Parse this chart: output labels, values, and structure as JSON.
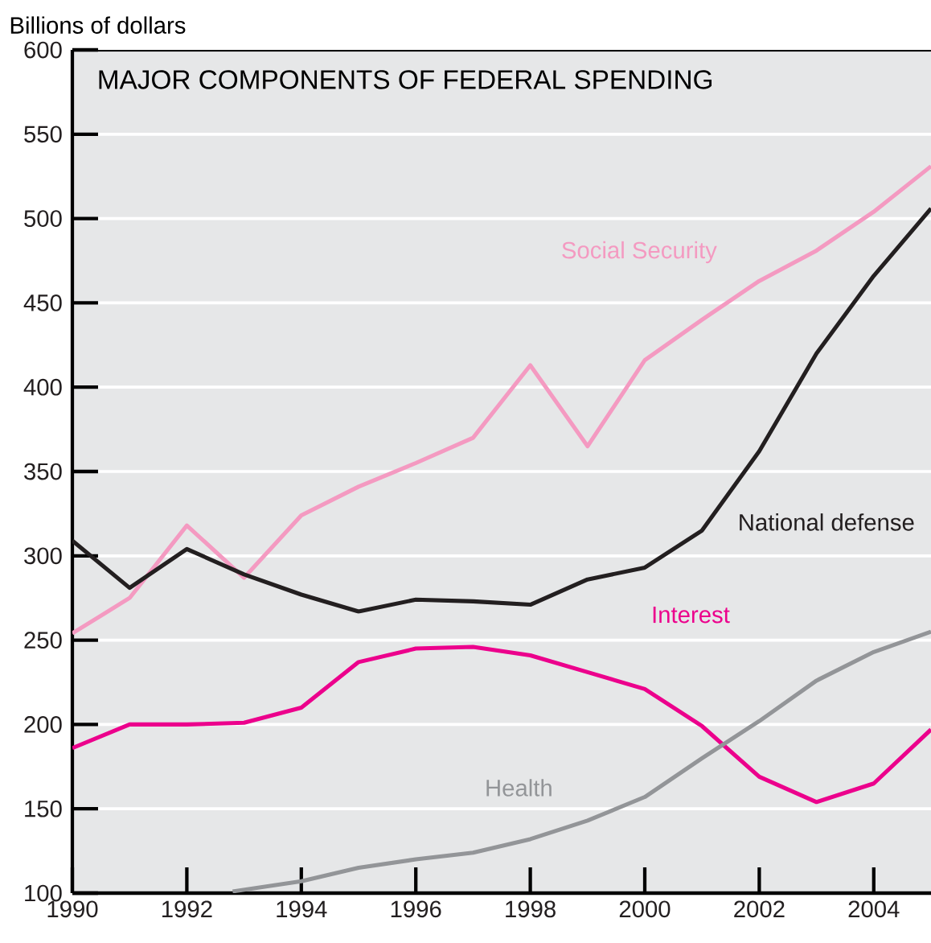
{
  "chart_data": {
    "type": "line",
    "title": "MAJOR COMPONENTS OF FEDERAL SPENDING",
    "ylabel": "Billions of dollars",
    "xlim": [
      1990,
      2005
    ],
    "xticks": [
      1990,
      1992,
      1994,
      1996,
      1998,
      2000,
      2002,
      2004
    ],
    "ylim": [
      100,
      600
    ],
    "yticks": [
      100,
      150,
      200,
      250,
      300,
      350,
      400,
      450,
      500,
      550,
      600
    ],
    "grid": "y",
    "legend": false,
    "marker": "none",
    "line_style": "solid",
    "series": [
      {
        "name": "Social Security",
        "color": "#f49ac1",
        "x": [
          1990,
          1991,
          1992,
          1993,
          1994,
          1995,
          1996,
          1997,
          1998,
          1999,
          2000,
          2001,
          2002,
          2003,
          2004,
          2005
        ],
        "values": [
          254,
          275,
          318,
          287,
          324,
          341,
          355,
          370,
          413,
          365,
          416,
          440,
          463,
          481,
          504,
          531
        ]
      },
      {
        "name": "National defense",
        "color": "#231f20",
        "x": [
          1990,
          1991,
          1992,
          1993,
          1994,
          1995,
          1996,
          1997,
          1998,
          1999,
          2000,
          2001,
          2002,
          2003,
          2004,
          2005
        ],
        "values": [
          309,
          281,
          304,
          289,
          277,
          267,
          274,
          273,
          271,
          286,
          293,
          315,
          362,
          420,
          466,
          506
        ]
      },
      {
        "name": "Interest",
        "color": "#ec008c",
        "x": [
          1990,
          1991,
          1992,
          1993,
          1994,
          1995,
          1996,
          1997,
          1998,
          1999,
          2000,
          2001,
          2002,
          2003,
          2004,
          2005
        ],
        "values": [
          186,
          200,
          200,
          201,
          210,
          237,
          245,
          246,
          241,
          231,
          221,
          199,
          169,
          154,
          165,
          197
        ]
      },
      {
        "name": "Health",
        "color": "#939598",
        "x": [
          1992.8,
          1994,
          1995,
          1996,
          1997,
          1998,
          1999,
          2000,
          2001,
          2002,
          2003,
          2004,
          2005
        ],
        "values": [
          101,
          107,
          115,
          120,
          124,
          132,
          143,
          157,
          180,
          202,
          226,
          243,
          255
        ]
      }
    ]
  }
}
